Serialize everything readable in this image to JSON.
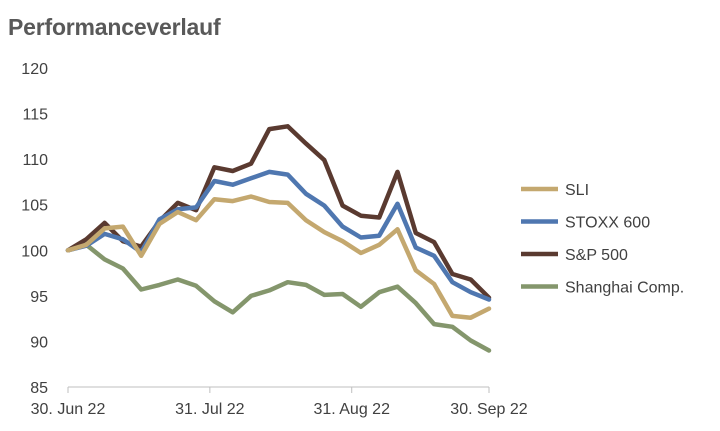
{
  "title": "Performanceverlauf",
  "chart_data": {
    "type": "line",
    "title": "Performanceverlauf",
    "xlabel": "",
    "ylabel": "",
    "ylim": [
      85,
      120
    ],
    "yticks": [
      85,
      90,
      95,
      100,
      105,
      110,
      115,
      120
    ],
    "xlim": [
      "30. Jun 22",
      "30. Sep 22"
    ],
    "xtick_labels": [
      "30. Jun 22",
      "31. Jul 22",
      "31. Aug 22",
      "30. Sep 22"
    ],
    "grid": "none",
    "legend_position": "right",
    "x": [
      "2022-06-30",
      "2022-07-04",
      "2022-07-08",
      "2022-07-12",
      "2022-07-16",
      "2022-07-20",
      "2022-07-24",
      "2022-07-28",
      "2022-08-01",
      "2022-08-05",
      "2022-08-09",
      "2022-08-13",
      "2022-08-17",
      "2022-08-21",
      "2022-08-25",
      "2022-08-29",
      "2022-09-02",
      "2022-09-06",
      "2022-09-10",
      "2022-09-14",
      "2022-09-18",
      "2022-09-22",
      "2022-09-26",
      "2022-09-30"
    ],
    "series": [
      {
        "name": "SLI",
        "color": "#c4a86f",
        "values": [
          100,
          100.6,
          102.4,
          102.6,
          99.4,
          102.9,
          104.2,
          103.3,
          105.6,
          105.4,
          105.9,
          105.3,
          105.2,
          103.3,
          102.0,
          101.0,
          99.7,
          100.6,
          102.3,
          97.8,
          96.3,
          92.8,
          92.6,
          93.6
        ]
      },
      {
        "name": "STOXX 600",
        "color": "#4f77b0",
        "values": [
          100,
          100.5,
          101.8,
          101.2,
          99.8,
          103.4,
          104.5,
          104.7,
          107.6,
          107.2,
          107.9,
          108.6,
          108.3,
          106.2,
          104.9,
          102.6,
          101.4,
          101.6,
          105.1,
          100.3,
          99.4,
          96.5,
          95.4,
          94.6
        ]
      },
      {
        "name": "S&P 500",
        "color": "#5a3a30",
        "values": [
          100,
          101.2,
          103.0,
          101.0,
          100.4,
          103.2,
          105.2,
          104.4,
          109.1,
          108.7,
          109.5,
          113.3,
          113.6,
          111.7,
          109.9,
          104.9,
          103.8,
          103.6,
          108.6,
          101.9,
          100.9,
          97.4,
          96.8,
          94.8
        ]
      },
      {
        "name": "Shanghai Comp.",
        "color": "#84966c",
        "values": [
          100,
          100.6,
          99.0,
          98.0,
          95.7,
          96.2,
          96.8,
          96.1,
          94.4,
          93.2,
          95.0,
          95.6,
          96.5,
          96.2,
          95.1,
          95.2,
          93.8,
          95.4,
          96.0,
          94.2,
          91.9,
          91.6,
          90.1,
          89.0
        ]
      }
    ]
  }
}
